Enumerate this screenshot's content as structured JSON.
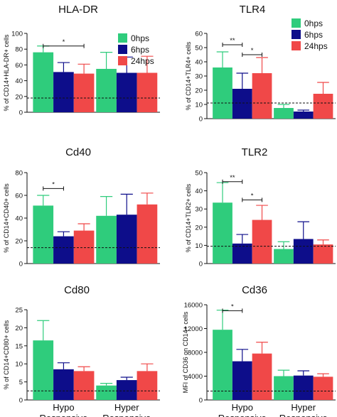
{
  "colors": {
    "0hps": "#2fcc7c",
    "6hps": "#0d0d8a",
    "24hps": "#f04848"
  },
  "chart_data": [
    {
      "type": "bar",
      "title": "HLA-DR",
      "ylabel": "% of CD14+HLA-DR+ cells",
      "ylim": [
        0,
        100
      ],
      "yticks": [
        "0",
        "20",
        "40",
        "60",
        "80",
        "100"
      ],
      "categories": [
        "Hypo Responsive",
        "Hyper Responsive"
      ],
      "series": [
        {
          "name": "0hps",
          "values": [
            76,
            55
          ],
          "errors": [
            8,
            21
          ]
        },
        {
          "name": "6hps",
          "values": [
            51,
            50
          ],
          "errors": [
            12,
            20
          ]
        },
        {
          "name": "24hps",
          "values": [
            49,
            50
          ],
          "errors": [
            12,
            21
          ]
        }
      ],
      "dashed_y": 18,
      "sig": [
        {
          "from": 0,
          "to": 2,
          "label": "*",
          "y": 84
        }
      ],
      "legend": true,
      "show_xlabels": false
    },
    {
      "type": "bar",
      "title": "TLR4",
      "ylabel": "% of CD14+TLR4+ cells",
      "ylim": [
        0,
        60
      ],
      "yticks": [
        "0",
        "10",
        "20",
        "30",
        "40",
        "50",
        "60"
      ],
      "categories": [
        "Hypo Responsive",
        "Hyper Responsive"
      ],
      "series": [
        {
          "name": "0hps",
          "values": [
            36,
            7.5
          ],
          "errors": [
            11,
            2.5
          ]
        },
        {
          "name": "6hps",
          "values": [
            21,
            5
          ],
          "errors": [
            11,
            1
          ]
        },
        {
          "name": "24hps",
          "values": [
            32,
            17.5
          ],
          "errors": [
            11,
            8
          ]
        }
      ],
      "dashed_y": 11,
      "sig": [
        {
          "from": 0,
          "to": 1,
          "label": "**",
          "y": 52
        },
        {
          "from": 1,
          "to": 2,
          "label": "*",
          "y": 45
        }
      ],
      "legend": true,
      "show_xlabels": false
    },
    {
      "type": "bar",
      "title": "Cd40",
      "ylabel": "% of CD14+CD40+ cells",
      "ylim": [
        0,
        80
      ],
      "yticks": [
        "0",
        "20",
        "40",
        "60",
        "80"
      ],
      "categories": [
        "Hypo Responsive",
        "Hyper Responsive"
      ],
      "series": [
        {
          "name": "0hps",
          "values": [
            51,
            42
          ],
          "errors": [
            9,
            17
          ]
        },
        {
          "name": "6hps",
          "values": [
            24,
            43
          ],
          "errors": [
            4,
            18
          ]
        },
        {
          "name": "24hps",
          "values": [
            29,
            52
          ],
          "errors": [
            6,
            10
          ]
        }
      ],
      "dashed_y": 14,
      "sig": [
        {
          "from": 0,
          "to": 1,
          "label": "*",
          "y": 66
        }
      ],
      "legend": false,
      "show_xlabels": false
    },
    {
      "type": "bar",
      "title": "TLR2",
      "ylabel": "% of CD14+TLR2+ cells",
      "ylim": [
        0,
        50
      ],
      "yticks": [
        "0",
        "10",
        "20",
        "30",
        "40",
        "50"
      ],
      "categories": [
        "Hypo Responsive",
        "Hyper Responsive"
      ],
      "series": [
        {
          "name": "0hps",
          "values": [
            33.5,
            8
          ],
          "errors": [
            11,
            4
          ]
        },
        {
          "name": "6hps",
          "values": [
            11,
            13.5
          ],
          "errors": [
            5,
            9.5
          ]
        },
        {
          "name": "24hps",
          "values": [
            24,
            10.5
          ],
          "errors": [
            8,
            2.5
          ]
        }
      ],
      "dashed_y": 9.5,
      "sig": [
        {
          "from": 0,
          "to": 1,
          "label": "**",
          "y": 45
        },
        {
          "from": 1,
          "to": 2,
          "label": "*",
          "y": 35
        }
      ],
      "legend": false,
      "show_xlabels": false
    },
    {
      "type": "bar",
      "title": "Cd80",
      "ylabel": "% of CD14+CD80+ cells",
      "ylim": [
        0,
        25
      ],
      "yticks": [
        "0",
        "5",
        "10",
        "15",
        "20",
        "25"
      ],
      "categories": [
        "Hypo Responsive",
        "Hyper Responsive"
      ],
      "series": [
        {
          "name": "0hps",
          "values": [
            16.5,
            4
          ],
          "errors": [
            5.5,
            0.6
          ]
        },
        {
          "name": "6hps",
          "values": [
            8.5,
            5.5
          ],
          "errors": [
            1.8,
            0.8
          ]
        },
        {
          "name": "24hps",
          "values": [
            8,
            8
          ],
          "errors": [
            1.2,
            2
          ]
        }
      ],
      "dashed_y": 2.5,
      "sig": [],
      "legend": false,
      "show_xlabels": true
    },
    {
      "type": "bar",
      "title": "Cd36",
      "ylabel": "MFI of CD36 on CD14+ cells",
      "ylim": [
        0,
        16000
      ],
      "yticks": [
        "0",
        "4000",
        "8000",
        "12000",
        "16000"
      ],
      "categories": [
        "Hypo Responsive",
        "Hyper Responsive"
      ],
      "series": [
        {
          "name": "0hps",
          "values": [
            11800,
            4000
          ],
          "errors": [
            3300,
            1000
          ]
        },
        {
          "name": "6hps",
          "values": [
            6500,
            4100
          ],
          "errors": [
            2000,
            800
          ]
        },
        {
          "name": "24hps",
          "values": [
            7800,
            3900
          ],
          "errors": [
            1900,
            500
          ]
        }
      ],
      "dashed_y": 1500,
      "sig": [
        {
          "from": 0,
          "to": 1,
          "label": "*",
          "y": 15000
        }
      ],
      "legend": false,
      "show_xlabels": true
    }
  ]
}
